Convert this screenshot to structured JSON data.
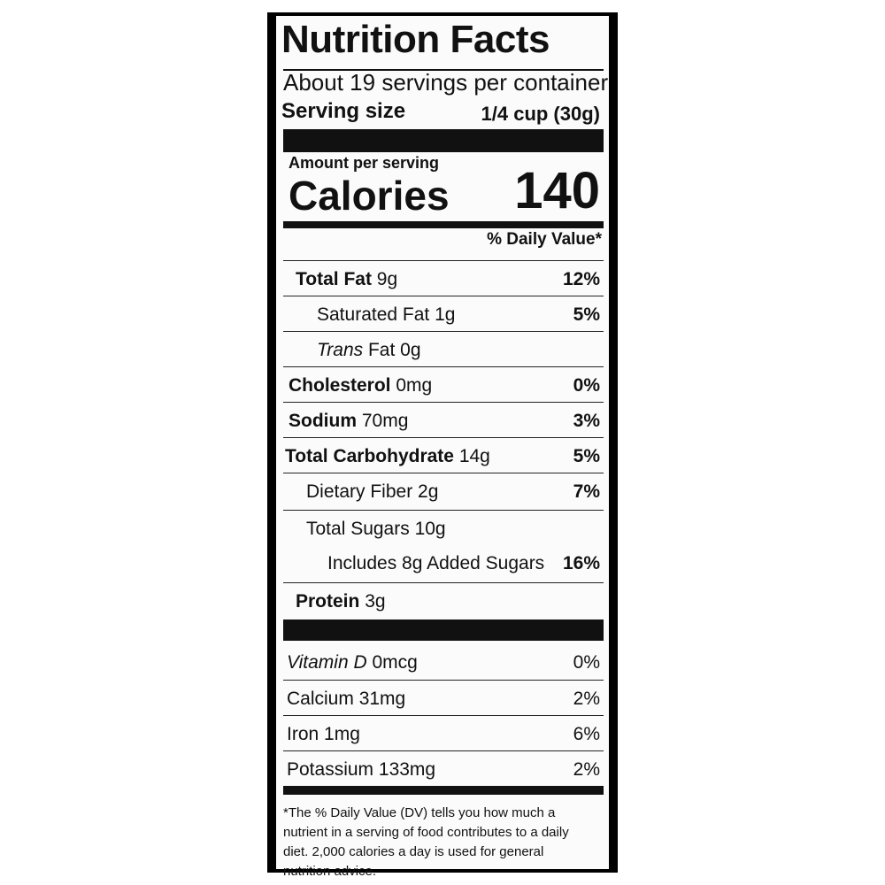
{
  "title": "Nutrition Facts",
  "servings": "About 19 servings per container",
  "serving_size": {
    "label": "Serving size",
    "value": "1/4 cup (30g)"
  },
  "amount_per_serving": "Amount per serving",
  "calories": {
    "label": "Calories",
    "value": "140"
  },
  "daily_value_header": "% Daily Value*",
  "nutrients": [
    {
      "name": "Total Fat",
      "amount": "9g",
      "dv": "12%"
    },
    {
      "name": "Saturated Fat",
      "amount": "1g",
      "dv": "5%"
    },
    {
      "name_italic": "Trans",
      "name": "Fat",
      "amount": "0g"
    },
    {
      "name": "Cholesterol",
      "amount": "0mg",
      "dv": "0%"
    },
    {
      "name": "Sodium",
      "amount": "70mg",
      "dv": "3%"
    },
    {
      "name": "Total Carbohydrate",
      "amount": "14g",
      "dv": "5%"
    },
    {
      "name": "Dietary Fiber",
      "amount": "2g",
      "dv": "7%"
    },
    {
      "name": "Total Sugars",
      "amount": "10g"
    },
    {
      "name": "Includes 8g Added Sugars",
      "dv": "16%"
    },
    {
      "name": "Protein",
      "amount": "3g"
    }
  ],
  "vitamins": [
    {
      "name": "Vitamin D",
      "amount": "0mcg",
      "dv": "0%"
    },
    {
      "name": "Calcium",
      "amount": "31mg",
      "dv": "2%"
    },
    {
      "name": "Iron",
      "amount": "1mg",
      "dv": "6%"
    },
    {
      "name": "Potassium",
      "amount": "133mg",
      "dv": "2%"
    }
  ],
  "footnote": "*The % Daily Value (DV) tells you how much a nutrient in a serving of food contributes to a daily diet. 2,000 calories a day is used for general nutrition advice."
}
